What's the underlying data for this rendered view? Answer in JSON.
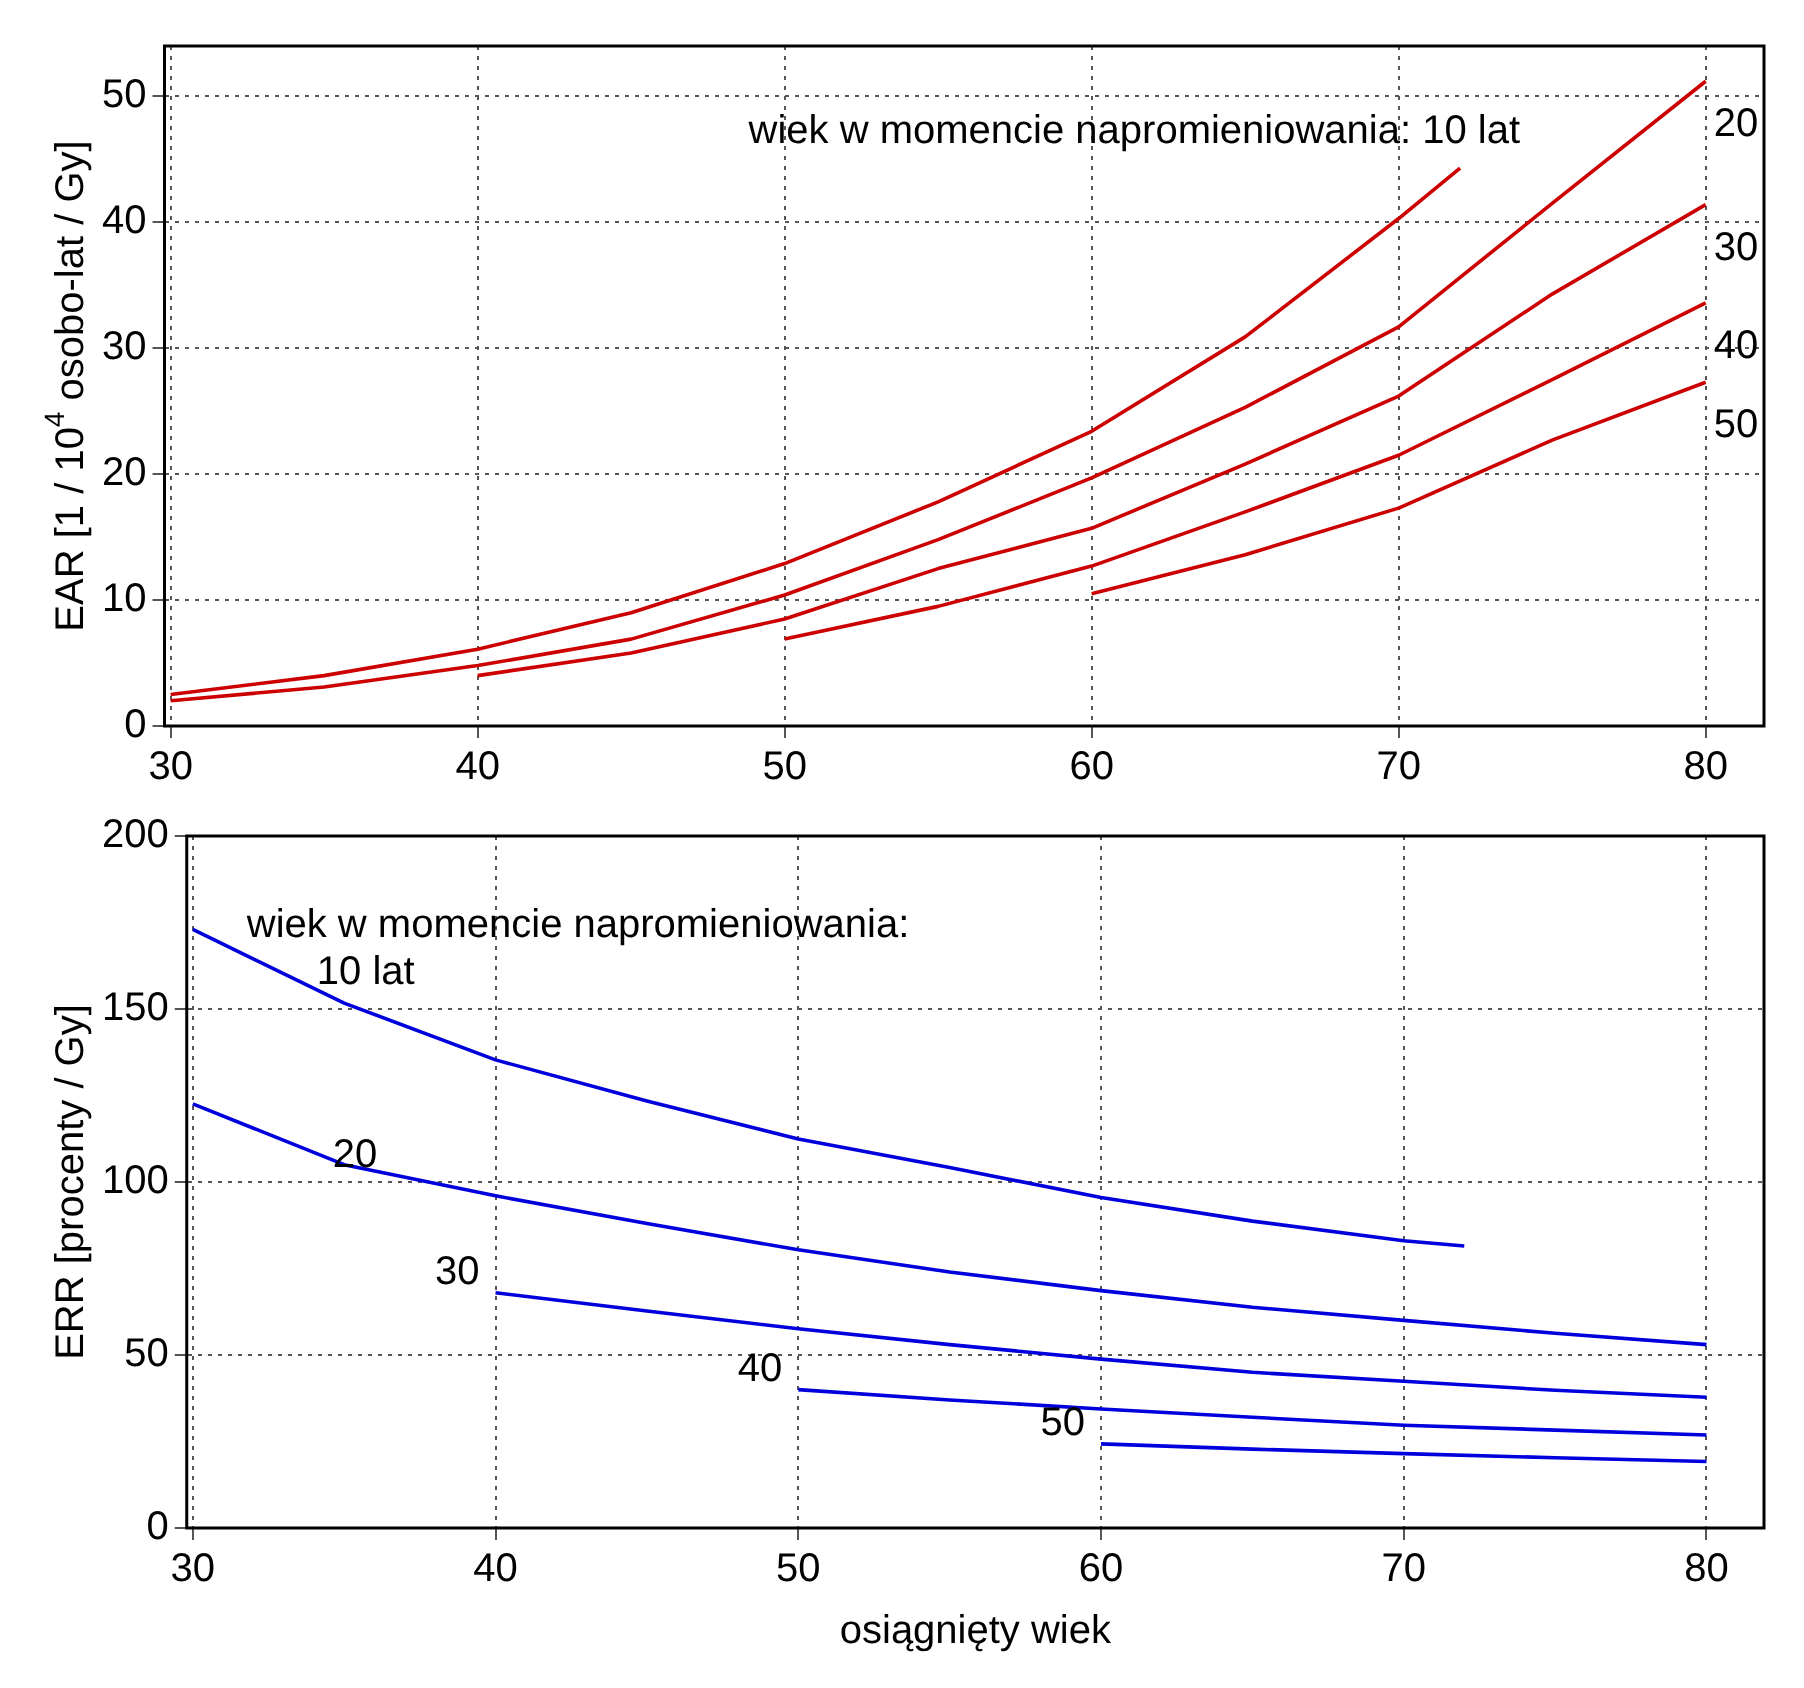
{
  "chart_data": [
    {
      "type": "line",
      "ylabel": "EAR [1 / 10$^{4}$ osobo-lat / Gy]",
      "xlim": [
        29.8,
        81.9
      ],
      "xticks": [
        30,
        40,
        50,
        60,
        70,
        80
      ],
      "ylim": [
        0,
        54
      ],
      "yticks": [
        0,
        10,
        20,
        30,
        40,
        50
      ],
      "grid": true,
      "legend": false,
      "marker": "none",
      "line_style": "solid",
      "series": [
        {
          "name": "wiek w momencie napromieniowania: 10 lat",
          "color": "#cc0000",
          "x": [
            30,
            35,
            40,
            45,
            50,
            55,
            60,
            65,
            70,
            72
          ],
          "values": [
            2.5,
            4.0,
            6.1,
            9.0,
            12.9,
            17.8,
            23.4,
            30.9,
            40.3,
            44.3
          ]
        },
        {
          "name": "20",
          "color": "#cc0000",
          "x": [
            30,
            35,
            40,
            45,
            50,
            55,
            60,
            65,
            70,
            75,
            80
          ],
          "values": [
            2.0,
            3.1,
            4.8,
            6.9,
            10.4,
            14.8,
            19.7,
            25.3,
            31.7,
            41.5,
            51.2
          ]
        },
        {
          "name": "30",
          "color": "#cc0000",
          "x": [
            40,
            45,
            50,
            55,
            60,
            65,
            70,
            75,
            80
          ],
          "values": [
            4.0,
            5.8,
            8.5,
            12.5,
            15.7,
            20.8,
            26.2,
            34.3,
            41.4
          ]
        },
        {
          "name": "40",
          "color": "#cc0000",
          "x": [
            50,
            55,
            60,
            65,
            70,
            75,
            80
          ],
          "values": [
            6.9,
            9.5,
            12.7,
            17.0,
            21.5,
            27.5,
            33.6
          ]
        },
        {
          "name": "50",
          "color": "#cc0000",
          "x": [
            60,
            65,
            70,
            75,
            80
          ],
          "values": [
            10.5,
            13.6,
            17.3,
            22.7,
            27.3
          ]
        }
      ]
    },
    {
      "type": "line",
      "xlabel": "osiągnięty wiek",
      "ylabel": "ERR [procenty / Gy]",
      "xlim": [
        29.8,
        81.9
      ],
      "xticks": [
        30,
        40,
        50,
        60,
        70,
        80
      ],
      "ylim": [
        0,
        200
      ],
      "yticks": [
        0,
        50,
        100,
        150,
        200
      ],
      "grid": true,
      "legend": false,
      "marker": "none",
      "line_style": "solid",
      "annotations": [
        "wiek w momencie napromieniowania:"
      ],
      "series": [
        {
          "name": "10 lat",
          "color": "#0000dd",
          "x": [
            30,
            35,
            40,
            45,
            50,
            55,
            60,
            65,
            70,
            72
          ],
          "values": [
            173,
            151.7,
            135.3,
            123.4,
            112.4,
            104.2,
            95.5,
            88.7,
            83,
            81.5
          ]
        },
        {
          "name": "20",
          "color": "#0000dd",
          "x": [
            30,
            35,
            40,
            45,
            50,
            55,
            60,
            65,
            70,
            75,
            80
          ],
          "values": [
            122.6,
            105,
            96,
            88,
            80.4,
            74,
            68.6,
            63.8,
            60,
            56.3,
            53
          ]
        },
        {
          "name": "30",
          "color": "#0000dd",
          "x": [
            40,
            45,
            50,
            55,
            60,
            65,
            70,
            75,
            80
          ],
          "values": [
            68,
            62.7,
            57.6,
            53,
            48.8,
            45,
            42.4,
            39.8,
            37.8
          ]
        },
        {
          "name": "40",
          "color": "#0000dd",
          "x": [
            50,
            55,
            60,
            65,
            70,
            75,
            80
          ],
          "values": [
            40,
            37,
            34.4,
            32,
            29.7,
            28.3,
            26.9
          ]
        },
        {
          "name": "50",
          "color": "#0000dd",
          "x": [
            60,
            65,
            70,
            75,
            80
          ],
          "values": [
            24.3,
            22.8,
            21.5,
            20.3,
            19.2
          ]
        }
      ]
    }
  ]
}
